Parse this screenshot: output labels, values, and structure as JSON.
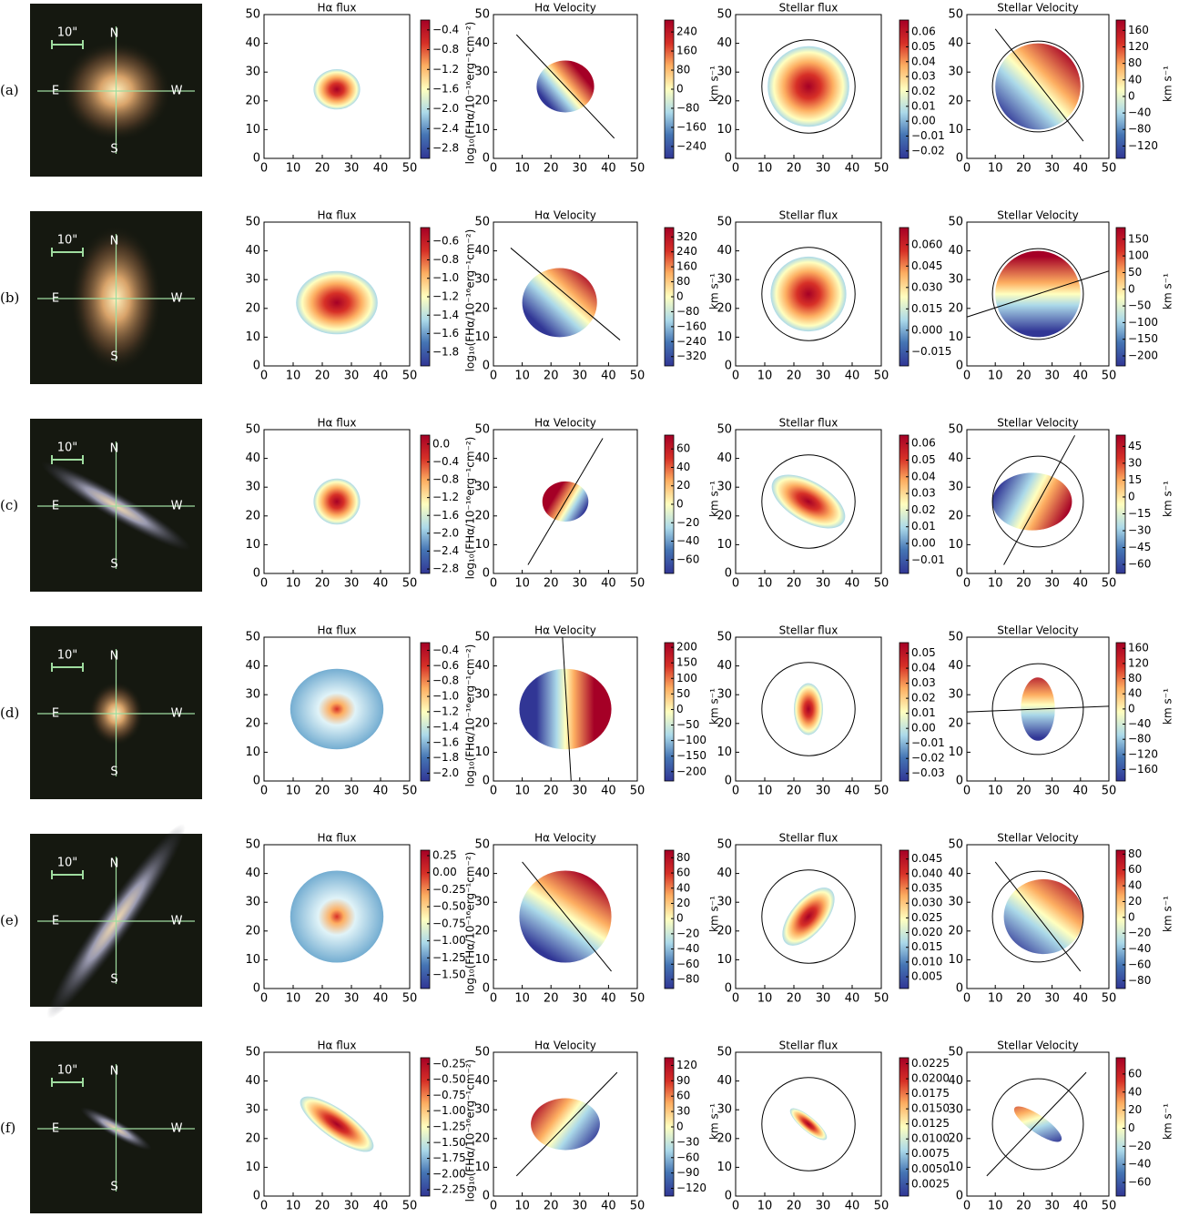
{
  "axes": {
    "xlim": [
      0,
      50
    ],
    "ylim": [
      0,
      50
    ],
    "xticks": [
      0,
      10,
      20,
      30,
      40,
      50
    ],
    "yticks": [
      0,
      10,
      20,
      30,
      40,
      50
    ]
  },
  "image_labels": {
    "scale": "10\"",
    "north": "N",
    "east": "E",
    "west": "W",
    "south": "S"
  },
  "titles": [
    "Hα flux",
    "Hα Velocity",
    "Stellar flux",
    "Stellar Velocity"
  ],
  "colorbar_labels": {
    "flux": "log₁₀(FHα/10⁻¹⁶erg⁻¹cm⁻²)",
    "velocity": "km s⁻¹"
  },
  "rows": [
    {
      "label": "(a)",
      "colorbars": [
        {
          "range": [
            -3.0,
            -0.2
          ],
          "ticks": [
            {
              "value": -0.4,
              "label": "−0.4"
            },
            {
              "value": -0.8,
              "label": "−0.8"
            },
            {
              "value": -1.2,
              "label": "−1.2"
            },
            {
              "value": -1.6,
              "label": "−1.6"
            },
            {
              "value": -2.0,
              "label": "−2.0"
            },
            {
              "value": -2.4,
              "label": "−2.4"
            },
            {
              "value": -2.8,
              "label": "−2.8"
            }
          ]
        },
        {
          "range": [
            -290,
            290
          ],
          "ticks": [
            240,
            160,
            80,
            0,
            {
              "value": -80,
              "label": "−80"
            },
            {
              "value": -160,
              "label": "−160"
            },
            {
              "value": -240,
              "label": "−240"
            }
          ]
        },
        {
          "range": [
            -0.025,
            0.068
          ],
          "ticks": [
            0.06,
            0.05,
            0.04,
            0.03,
            0.02,
            0.01,
            {
              "value": 0,
              "label": "0.00"
            },
            {
              "value": -0.01,
              "label": "−0.01"
            },
            {
              "value": -0.02,
              "label": "−0.02"
            }
          ]
        },
        {
          "range": [
            -150,
            185
          ],
          "ticks": [
            160,
            120,
            80,
            40,
            0,
            {
              "value": -40,
              "label": "−40"
            },
            {
              "value": -80,
              "label": "−80"
            },
            {
              "value": -120,
              "label": "−120"
            }
          ]
        }
      ]
    },
    {
      "label": "(b)",
      "colorbars": [
        {
          "range": [
            -1.95,
            -0.45
          ],
          "ticks": [
            {
              "value": -0.6,
              "label": "−0.6"
            },
            {
              "value": -0.8,
              "label": "−0.8"
            },
            {
              "value": -1.0,
              "label": "−1.0"
            },
            {
              "value": -1.2,
              "label": "−1.2"
            },
            {
              "value": -1.4,
              "label": "−1.4"
            },
            {
              "value": -1.6,
              "label": "−1.6"
            },
            {
              "value": -1.8,
              "label": "−1.8"
            }
          ]
        },
        {
          "range": [
            -370,
            370
          ],
          "ticks": [
            320,
            240,
            160,
            80,
            0,
            {
              "value": -80,
              "label": "−80"
            },
            {
              "value": -160,
              "label": "−160"
            },
            {
              "value": -240,
              "label": "−240"
            },
            {
              "value": -320,
              "label": "−320"
            }
          ]
        },
        {
          "range": [
            -0.025,
            0.072
          ],
          "ticks": [
            {
              "value": 0.06,
              "label": "0.060"
            },
            0.045,
            {
              "value": 0.03,
              "label": "0.030"
            },
            0.015,
            {
              "value": 0,
              "label": "0.000"
            },
            {
              "value": -0.015,
              "label": "−0.015"
            }
          ]
        },
        {
          "range": [
            -230,
            185
          ],
          "ticks": [
            150,
            100,
            50,
            0,
            {
              "value": -50,
              "label": "−50"
            },
            {
              "value": -100,
              "label": "−100"
            },
            {
              "value": -150,
              "label": "−150"
            },
            {
              "value": -200,
              "label": "−200"
            }
          ]
        }
      ]
    },
    {
      "label": "(c)",
      "colorbars": [
        {
          "range": [
            -2.9,
            0.2
          ],
          "ticks": [
            {
              "value": 0,
              "label": "0.0"
            },
            {
              "value": -0.4,
              "label": "−0.4"
            },
            {
              "value": -0.8,
              "label": "−0.8"
            },
            {
              "value": -1.2,
              "label": "−1.2"
            },
            {
              "value": -1.6,
              "label": "−1.6"
            },
            {
              "value": -2.0,
              "label": "−2.0"
            },
            {
              "value": -2.4,
              "label": "−2.4"
            },
            {
              "value": -2.8,
              "label": "−2.8"
            }
          ]
        },
        {
          "range": [
            -75,
            75
          ],
          "ticks": [
            60,
            40,
            20,
            0,
            {
              "value": -20,
              "label": "−20"
            },
            {
              "value": -40,
              "label": "−40"
            },
            {
              "value": -60,
              "label": "−60"
            }
          ]
        },
        {
          "range": [
            -0.018,
            0.065
          ],
          "ticks": [
            0.06,
            0.05,
            0.04,
            0.03,
            0.02,
            0.01,
            {
              "value": 0,
              "label": "0.00"
            },
            {
              "value": -0.01,
              "label": "−0.01"
            }
          ]
        },
        {
          "range": [
            -68,
            55
          ],
          "ticks": [
            45,
            30,
            15,
            0,
            {
              "value": -15,
              "label": "−15"
            },
            {
              "value": -30,
              "label": "−30"
            },
            {
              "value": -45,
              "label": "−45"
            },
            {
              "value": -60,
              "label": "−60"
            }
          ]
        }
      ]
    },
    {
      "label": "(d)",
      "colorbars": [
        {
          "range": [
            -2.1,
            -0.3
          ],
          "ticks": [
            {
              "value": -0.4,
              "label": "−0.4"
            },
            {
              "value": -0.6,
              "label": "−0.6"
            },
            {
              "value": -0.8,
              "label": "−0.8"
            },
            {
              "value": -1.0,
              "label": "−1.0"
            },
            {
              "value": -1.2,
              "label": "−1.2"
            },
            {
              "value": -1.4,
              "label": "−1.4"
            },
            {
              "value": -1.6,
              "label": "−1.6"
            },
            {
              "value": -1.8,
              "label": "−1.8"
            },
            {
              "value": -2.0,
              "label": "−2.0"
            }
          ]
        },
        {
          "range": [
            -230,
            215
          ],
          "ticks": [
            200,
            150,
            100,
            50,
            0,
            {
              "value": -50,
              "label": "−50"
            },
            {
              "value": -100,
              "label": "−100"
            },
            {
              "value": -150,
              "label": "−150"
            },
            {
              "value": -200,
              "label": "−200"
            }
          ]
        },
        {
          "range": [
            -0.035,
            0.057
          ],
          "ticks": [
            0.05,
            0.04,
            0.03,
            0.02,
            0.01,
            {
              "value": 0,
              "label": "0.00"
            },
            {
              "value": -0.01,
              "label": "−0.01"
            },
            {
              "value": -0.02,
              "label": "−0.02"
            },
            {
              "value": -0.03,
              "label": "−0.03"
            }
          ]
        },
        {
          "range": [
            -190,
            175
          ],
          "ticks": [
            160,
            120,
            80,
            40,
            0,
            {
              "value": -40,
              "label": "−40"
            },
            {
              "value": -80,
              "label": "−80"
            },
            {
              "value": -120,
              "label": "−120"
            },
            {
              "value": -160,
              "label": "−160"
            }
          ]
        }
      ]
    },
    {
      "label": "(e)",
      "colorbars": [
        {
          "range": [
            -1.7,
            0.33
          ],
          "ticks": [
            0.25,
            {
              "value": 0,
              "label": "0.00"
            },
            {
              "value": -0.25,
              "label": "−0.25"
            },
            {
              "value": -0.5,
              "label": "−0.50"
            },
            {
              "value": -0.75,
              "label": "−0.75"
            },
            {
              "value": -1.0,
              "label": "−1.00"
            },
            {
              "value": -1.25,
              "label": "−1.25"
            },
            {
              "value": -1.5,
              "label": "−1.50"
            }
          ]
        },
        {
          "range": [
            -92,
            90
          ],
          "ticks": [
            80,
            60,
            40,
            20,
            0,
            {
              "value": -20,
              "label": "−20"
            },
            {
              "value": -40,
              "label": "−40"
            },
            {
              "value": -60,
              "label": "−60"
            },
            {
              "value": -80,
              "label": "−80"
            }
          ]
        },
        {
          "range": [
            0.001,
            0.048
          ],
          "ticks": [
            0.045,
            {
              "value": 0.04,
              "label": "0.040"
            },
            0.035,
            {
              "value": 0.03,
              "label": "0.030"
            },
            0.025,
            {
              "value": 0.02,
              "label": "0.020"
            },
            0.015,
            {
              "value": 0.01,
              "label": "0.010"
            },
            0.005
          ]
        },
        {
          "range": [
            -90,
            85
          ],
          "ticks": [
            80,
            60,
            40,
            20,
            0,
            {
              "value": -20,
              "label": "−20"
            },
            {
              "value": -40,
              "label": "−40"
            },
            {
              "value": -60,
              "label": "−60"
            },
            {
              "value": -80,
              "label": "−80"
            }
          ]
        }
      ]
    },
    {
      "label": "(f)",
      "colorbars": [
        {
          "range": [
            -2.35,
            -0.15
          ],
          "ticks": [
            {
              "value": -0.25,
              "label": "−0.25"
            },
            {
              "value": -0.5,
              "label": "−0.50"
            },
            {
              "value": -0.75,
              "label": "−0.75"
            },
            {
              "value": -1.0,
              "label": "−1.00"
            },
            {
              "value": -1.25,
              "label": "−1.25"
            },
            {
              "value": -1.5,
              "label": "−1.50"
            },
            {
              "value": -1.75,
              "label": "−1.75"
            },
            {
              "value": -2.0,
              "label": "−2.00"
            },
            {
              "value": -2.25,
              "label": "−2.25"
            }
          ]
        },
        {
          "range": [
            -135,
            135
          ],
          "ticks": [
            120,
            90,
            60,
            30,
            0,
            {
              "value": -30,
              "label": "−30"
            },
            {
              "value": -60,
              "label": "−60"
            },
            {
              "value": -90,
              "label": "−90"
            },
            {
              "value": -120,
              "label": "−120"
            }
          ]
        },
        {
          "range": [
            0.0005,
            0.0235
          ],
          "ticks": [
            0.0225,
            {
              "value": 0.02,
              "label": "0.0200"
            },
            0.0175,
            {
              "value": 0.015,
              "label": "0.0150"
            },
            0.0125,
            {
              "value": 0.01,
              "label": "0.0100"
            },
            0.0075,
            {
              "value": 0.005,
              "label": "0.0050"
            },
            0.0025
          ]
        },
        {
          "range": [
            -75,
            78
          ],
          "ticks": [
            60,
            40,
            20,
            0,
            {
              "value": -20,
              "label": "−20"
            },
            {
              "value": -40,
              "label": "−40"
            },
            {
              "value": -60,
              "label": "−60"
            }
          ]
        }
      ]
    }
  ]
}
